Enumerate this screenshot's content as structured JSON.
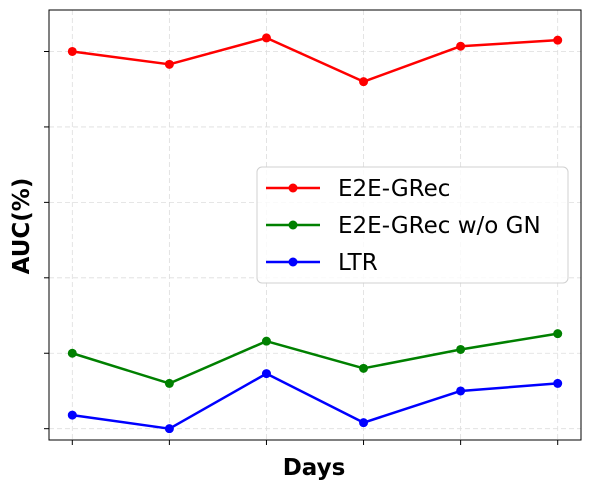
{
  "chart_data": {
    "type": "line",
    "title": "",
    "xlabel": "Days",
    "ylabel": "AUC(%)",
    "x": [
      1,
      2,
      3,
      4,
      5,
      6
    ],
    "xticklabels_visible": false,
    "yticklabels_visible": false,
    "ylim": [
      -0.15,
      5.55
    ],
    "yticks": [
      0,
      1,
      2,
      3,
      4,
      5
    ],
    "grid": true,
    "legend_position": "center-right",
    "series": [
      {
        "name": "E2E-GRec",
        "color": "#ff0000",
        "values": [
          5.0,
          4.83,
          5.18,
          4.6,
          5.07,
          5.15
        ]
      },
      {
        "name": "E2E-GRec w/o GN",
        "color": "#008000",
        "values": [
          1.0,
          0.6,
          1.16,
          0.8,
          1.05,
          1.26
        ]
      },
      {
        "name": "LTR",
        "color": "#0000ff",
        "values": [
          0.18,
          0.0,
          0.73,
          0.08,
          0.5,
          0.6
        ]
      }
    ]
  }
}
